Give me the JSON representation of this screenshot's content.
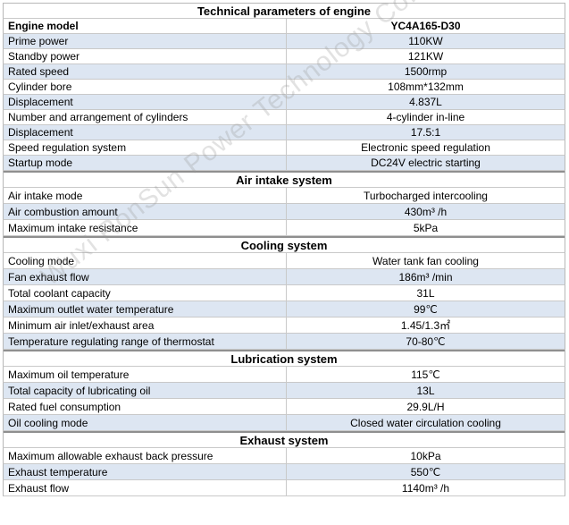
{
  "table": {
    "title": "Technical parameters of engine",
    "model_label": "Engine model",
    "model_value": "YC4A165-D30",
    "general": [
      {
        "label": "Prime power",
        "value": "110KW"
      },
      {
        "label": "Standby power",
        "value": "121KW"
      },
      {
        "label": "Rated speed",
        "value": "1500rmp"
      },
      {
        "label": "Cylinder bore",
        "value": "108mm*132mm"
      },
      {
        "label": "Displacement",
        "value": "4.837L"
      },
      {
        "label": "Number and arrangement of cylinders",
        "value": "4-cylinder in-line"
      },
      {
        "label": "Displacement",
        "value": "17.5:1"
      },
      {
        "label": "Speed regulation system",
        "value": "Electronic speed regulation"
      },
      {
        "label": "Startup mode",
        "value": "DC24V electric starting"
      }
    ],
    "sections": [
      {
        "title": "Air intake system",
        "rows": [
          {
            "label": "Air intake mode",
            "value": "Turbocharged intercooling"
          },
          {
            "label": "Air combustion amount",
            "value": "430m³ /h"
          },
          {
            "label": "Maximum intake resistance",
            "value": "5kPa"
          }
        ]
      },
      {
        "title": "Cooling system",
        "rows": [
          {
            "label": "Cooling mode",
            "value": "Water tank fan cooling"
          },
          {
            "label": "Fan exhaust flow",
            "value": "186m³  /min"
          },
          {
            "label": "Total coolant capacity",
            "value": "31L"
          },
          {
            "label": "Maximum outlet water temperature",
            "value": "99℃"
          },
          {
            "label": "Minimum air inlet/exhaust area",
            "value": "1.45/1.3㎡"
          },
          {
            "label": "Temperature regulating range of thermostat",
            "value": "70-80℃"
          }
        ]
      },
      {
        "title": "Lubrication system",
        "rows": [
          {
            "label": "Maximum oil temperature",
            "value": "115℃"
          },
          {
            "label": "Total capacity of lubricating oil",
            "value": "13L"
          },
          {
            "label": "Rated fuel consumption",
            "value": "29.9L/H"
          },
          {
            "label": "Oil cooling mode",
            "value": "Closed water circulation cooling"
          }
        ]
      },
      {
        "title": "Exhaust system",
        "rows": [
          {
            "label": "Maximum allowable exhaust back pressure",
            "value": "10kPa"
          },
          {
            "label": "Exhaust temperature",
            "value": "550℃"
          },
          {
            "label": "Exhaust flow",
            "value": "1140m³ /h"
          }
        ]
      }
    ]
  },
  "watermark": "Wuxi RonSun Power Technology Co.,"
}
